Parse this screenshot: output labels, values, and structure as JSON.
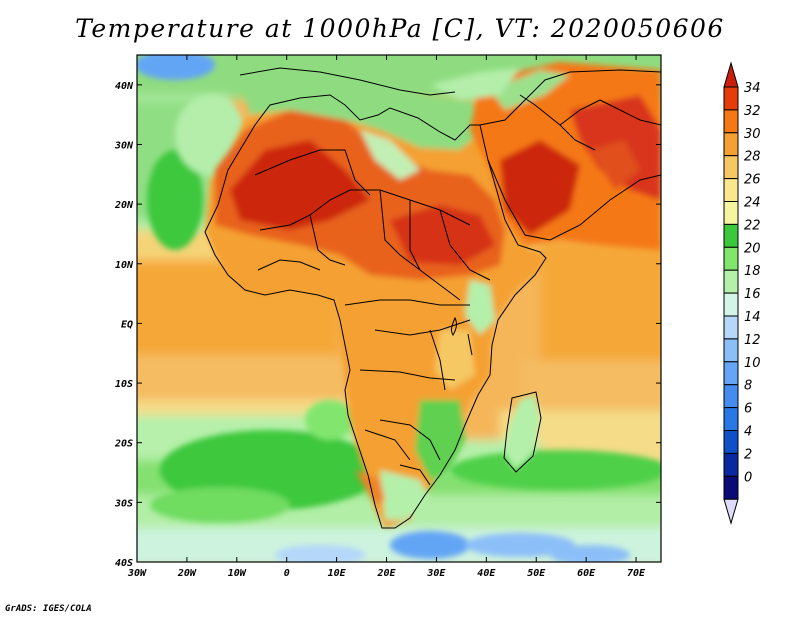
{
  "title": "Temperature at 1000hPa [C], VT: 2020050606",
  "footer": "GrADS: IGES/COLA",
  "map": {
    "lon_range": [
      -30,
      75
    ],
    "lat_range": [
      -40,
      45
    ],
    "lon_ticks": [
      {
        "value": -30,
        "label": "30W"
      },
      {
        "value": -20,
        "label": "20W"
      },
      {
        "value": -10,
        "label": "10W"
      },
      {
        "value": 0,
        "label": "0"
      },
      {
        "value": 10,
        "label": "10E"
      },
      {
        "value": 20,
        "label": "20E"
      },
      {
        "value": 30,
        "label": "30E"
      },
      {
        "value": 40,
        "label": "40E"
      },
      {
        "value": 50,
        "label": "50E"
      },
      {
        "value": 60,
        "label": "60E"
      },
      {
        "value": 70,
        "label": "70E"
      }
    ],
    "lat_ticks": [
      {
        "value": 40,
        "label": "40N"
      },
      {
        "value": 30,
        "label": "30N"
      },
      {
        "value": 20,
        "label": "20N"
      },
      {
        "value": 10,
        "label": "10N"
      },
      {
        "value": 0,
        "label": "EQ"
      },
      {
        "value": -10,
        "label": "10S"
      },
      {
        "value": -20,
        "label": "20S"
      },
      {
        "value": -30,
        "label": "30S"
      },
      {
        "value": -40,
        "label": "40S"
      }
    ]
  },
  "colorbar": {
    "labels": [
      "0",
      "2",
      "4",
      "6",
      "8",
      "10",
      "12",
      "14",
      "16",
      "18",
      "20",
      "22",
      "24",
      "26",
      "28",
      "30",
      "32",
      "34"
    ],
    "colors": [
      "#0a0a78",
      "#0a28a0",
      "#0f50c8",
      "#2878e6",
      "#468cf0",
      "#64a5f5",
      "#8cbff8",
      "#b4d7fa",
      "#d2f5e6",
      "#b4f0aa",
      "#82e66e",
      "#3cc83c",
      "#f5f5a0",
      "#fae68c",
      "#f5c864",
      "#f5a032",
      "#f57814",
      "#e63c0a",
      "#c81e0a"
    ],
    "low_cap_color": "#dcdcfa",
    "high_cap_color": "#c81e0a"
  }
}
